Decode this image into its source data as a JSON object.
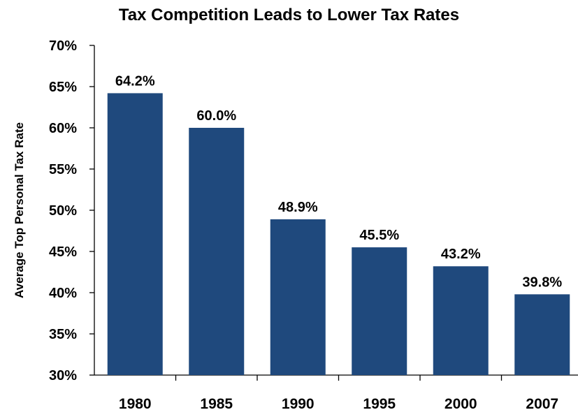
{
  "chart_data": {
    "type": "bar",
    "title": "Tax Competition Leads to Lower Tax Rates",
    "xlabel": "",
    "ylabel": "Average Top Personal Tax Rate",
    "categories": [
      "1980",
      "1985",
      "1990",
      "1995",
      "2000",
      "2007"
    ],
    "values": [
      64.2,
      60.0,
      48.9,
      45.5,
      43.2,
      39.8
    ],
    "data_labels": [
      "64.2%",
      "60.0%",
      "48.9%",
      "45.5%",
      "43.2%",
      "39.8%"
    ],
    "ylim": [
      30,
      70
    ],
    "y_ticks": [
      70,
      65,
      60,
      55,
      50,
      45,
      40,
      35,
      30
    ],
    "y_tick_labels": [
      "70%",
      "65%",
      "60%",
      "55%",
      "50%",
      "45%",
      "40%",
      "35%",
      "30%"
    ],
    "bar_color": "#1F497D",
    "grid": false,
    "legend": "none"
  }
}
